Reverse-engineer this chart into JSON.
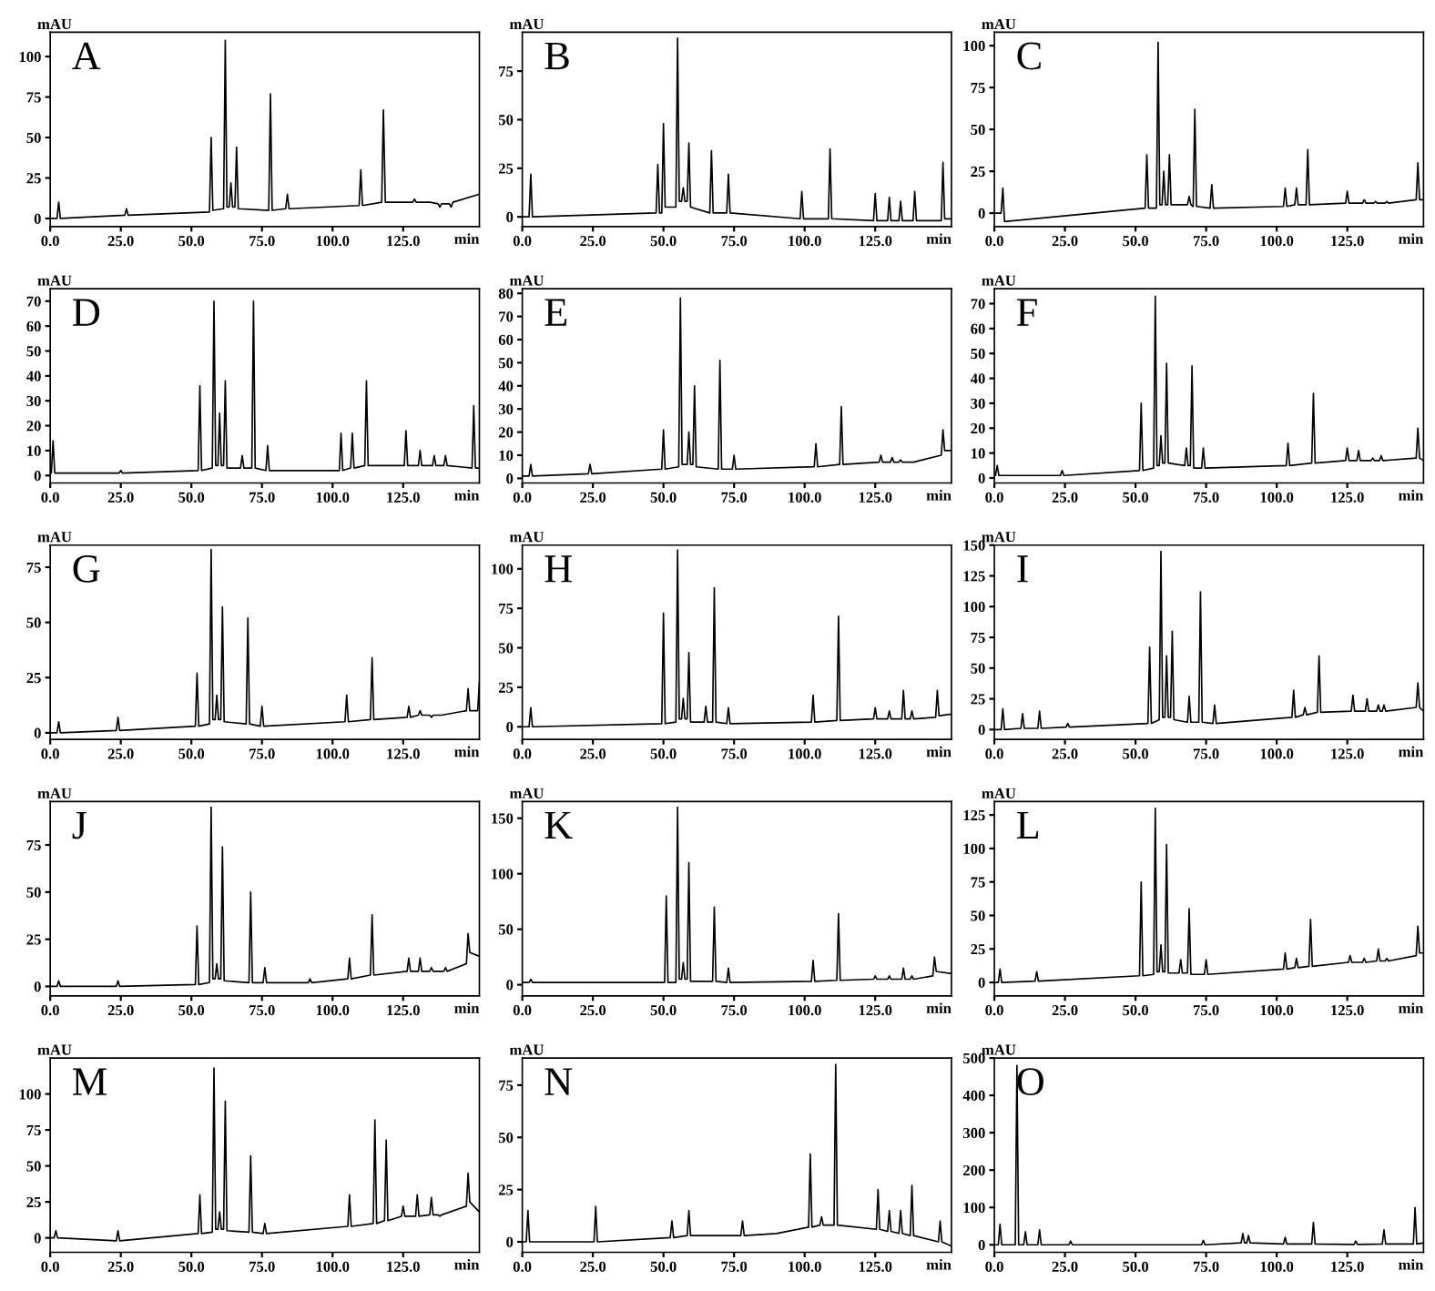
{
  "chart_data": [
    {
      "type": "line",
      "title": "A",
      "xlabel": "min",
      "ylabel": "mAU",
      "color": "#000000",
      "xlim": [
        0,
        152
      ],
      "ylim": [
        -5,
        115
      ],
      "yticks": [
        0,
        25,
        50,
        75,
        100
      ],
      "xticks": [
        {
          "value": 0,
          "label": "0.0"
        },
        {
          "value": 25,
          "label": "25.0"
        },
        {
          "value": 50,
          "label": "50.0"
        },
        {
          "value": 75,
          "label": "75.0"
        },
        {
          "value": 100,
          "label": "100.0"
        },
        {
          "value": 125,
          "label": "125.0"
        }
      ],
      "x": [
        0,
        2.4,
        3,
        3.6,
        26.4,
        27,
        27.6,
        56.4,
        57,
        57.6,
        61.4,
        62,
        62.6,
        63.4,
        64,
        64.6,
        65.4,
        66,
        66.6,
        77.4,
        78,
        78.6,
        83.4,
        84,
        84.6,
        109.4,
        110,
        110.6,
        117.4,
        118,
        118.7,
        128.4,
        129,
        129.6,
        133.4,
        134,
        134.6,
        137.4,
        138,
        138.6,
        141.4,
        142,
        142.6,
        152
      ],
      "values": [
        0,
        0,
        10,
        0,
        2,
        6,
        2,
        4,
        50,
        5,
        6,
        110,
        7,
        7,
        22,
        7,
        7,
        44,
        6,
        5,
        77,
        5,
        6,
        15,
        6,
        8,
        30,
        8,
        10,
        67,
        10,
        10,
        12,
        10,
        10,
        10,
        10,
        9,
        7,
        9,
        9,
        7,
        10,
        15
      ]
    },
    {
      "type": "line",
      "title": "B",
      "xlabel": "min",
      "ylabel": "mAU",
      "color": "#000000",
      "xlim": [
        0,
        152
      ],
      "ylim": [
        -5,
        95
      ],
      "yticks": [
        0,
        25,
        50,
        75
      ],
      "xticks": [
        {
          "value": 0,
          "label": "0.0"
        },
        {
          "value": 25,
          "label": "25.0"
        },
        {
          "value": 50,
          "label": "50.0"
        },
        {
          "value": 75,
          "label": "75.0"
        },
        {
          "value": 100,
          "label": "100.0"
        },
        {
          "value": 125,
          "label": "125.0"
        }
      ],
      "x": [
        0,
        2.4,
        3,
        3.6,
        47.4,
        48,
        48.6,
        49.4,
        50,
        50.6,
        54.4,
        55,
        55.6,
        56.4,
        57,
        57.6,
        58.4,
        59,
        59.6,
        66.4,
        67,
        67.6,
        72.4,
        73,
        73.6,
        98.4,
        99,
        99.6,
        108.4,
        109,
        109.6,
        124.4,
        125,
        125.6,
        129.4,
        130,
        130.6,
        133.4,
        134,
        134.6,
        138.4,
        139,
        139.6,
        148.4,
        149,
        149.6,
        152
      ],
      "values": [
        0,
        0,
        22,
        0,
        2,
        27,
        2,
        2,
        48,
        5,
        5,
        92,
        8,
        8,
        15,
        8,
        8,
        38,
        5,
        2,
        34,
        2,
        2,
        22,
        2,
        -1,
        13,
        -1,
        -1,
        35,
        -1,
        -2,
        12,
        -2,
        -2,
        10,
        -2,
        -2,
        8,
        -2,
        -2,
        13,
        -2,
        -2,
        28,
        -1,
        -1
      ]
    },
    {
      "type": "line",
      "title": "C",
      "xlabel": "min",
      "ylabel": "mAU",
      "color": "#000000",
      "xlim": [
        0,
        152
      ],
      "ylim": [
        -8,
        108
      ],
      "yticks": [
        0,
        25,
        50,
        75,
        100
      ],
      "xticks": [
        {
          "value": 0,
          "label": "0.0"
        },
        {
          "value": 25,
          "label": "25.0"
        },
        {
          "value": 50,
          "label": "50.0"
        },
        {
          "value": 75,
          "label": "75.0"
        },
        {
          "value": 100,
          "label": "100.0"
        },
        {
          "value": 125,
          "label": "125.0"
        }
      ],
      "x": [
        0,
        2.4,
        3,
        3.6,
        53.4,
        54,
        54.6,
        57.4,
        58,
        58.6,
        59.4,
        60,
        60.6,
        61.4,
        62,
        62.6,
        68.4,
        69,
        69.6,
        70.4,
        71,
        71.6,
        76.4,
        77,
        77.6,
        102.4,
        103,
        103.6,
        106.4,
        107,
        107.6,
        110.4,
        111,
        111.6,
        124.4,
        125,
        125.6,
        130.4,
        131,
        131.6,
        134.4,
        135,
        135.6,
        138.4,
        139,
        139.6,
        149.4,
        150,
        150.6,
        152
      ],
      "values": [
        0,
        0,
        15,
        -5,
        3,
        35,
        3,
        3,
        102,
        5,
        5,
        25,
        5,
        5,
        35,
        5,
        5,
        10,
        5,
        4,
        62,
        4,
        3,
        17,
        3,
        4,
        15,
        4,
        5,
        15,
        5,
        5,
        38,
        5,
        6,
        13,
        6,
        6,
        8,
        6,
        6,
        7,
        6,
        6,
        7,
        6,
        8,
        30,
        8,
        8
      ]
    },
    {
      "type": "line",
      "title": "D",
      "xlabel": "min",
      "ylabel": "mAU",
      "color": "#000000",
      "xlim": [
        0,
        152
      ],
      "ylim": [
        -3,
        75
      ],
      "yticks": [
        0,
        10,
        20,
        30,
        40,
        50,
        60,
        70
      ],
      "xticks": [
        {
          "value": 0,
          "label": "0.0"
        },
        {
          "value": 25,
          "label": "25.0"
        },
        {
          "value": 50,
          "label": "50.0"
        },
        {
          "value": 75,
          "label": "75.0"
        },
        {
          "value": 100,
          "label": "100.0"
        },
        {
          "value": 125,
          "label": "125.0"
        }
      ],
      "x": [
        0,
        0.4,
        1,
        1.6,
        24.4,
        25,
        25.6,
        52.4,
        53,
        53.6,
        57.4,
        58,
        58.6,
        59.4,
        60,
        60.6,
        61.4,
        62,
        62.6,
        67.4,
        68,
        68.6,
        71.4,
        72,
        72.6,
        76.4,
        77,
        77.6,
        102.4,
        103,
        103.6,
        106.4,
        107,
        107.6,
        111.4,
        112,
        112.6,
        125.4,
        126,
        126.6,
        130.4,
        131,
        131.6,
        135.4,
        136,
        136.6,
        139.4,
        140,
        140.6,
        149.4,
        150,
        150.6,
        152
      ],
      "values": [
        1,
        1,
        14,
        1,
        1,
        2,
        1,
        2,
        36,
        2,
        3,
        70,
        4,
        4,
        25,
        4,
        4,
        38,
        3,
        3,
        8,
        3,
        3,
        70,
        3,
        2,
        12,
        2,
        2,
        17,
        2,
        3,
        17,
        3,
        4,
        38,
        4,
        4,
        18,
        4,
        4,
        10,
        4,
        4,
        8,
        4,
        4,
        8,
        4,
        3,
        28,
        3,
        3
      ]
    },
    {
      "type": "line",
      "title": "E",
      "xlabel": "min",
      "ylabel": "mAU",
      "color": "#000000",
      "xlim": [
        0,
        152
      ],
      "ylim": [
        -2,
        82
      ],
      "yticks": [
        0,
        10,
        20,
        30,
        40,
        50,
        60,
        70,
        80
      ],
      "xticks": [
        {
          "value": 0,
          "label": "0.0"
        },
        {
          "value": 25,
          "label": "25.0"
        },
        {
          "value": 50,
          "label": "50.0"
        },
        {
          "value": 75,
          "label": "75.0"
        },
        {
          "value": 100,
          "label": "100.0"
        },
        {
          "value": 125,
          "label": "125.0"
        }
      ],
      "x": [
        0,
        2.4,
        3,
        3.6,
        23.4,
        24,
        24.6,
        49.4,
        50,
        50.6,
        55.4,
        56,
        56.6,
        58.4,
        59,
        59.6,
        60.4,
        61,
        61.6,
        69.4,
        70,
        70.6,
        74.4,
        75,
        75.6,
        103.4,
        104,
        104.6,
        112.4,
        113,
        113.6,
        126.4,
        127,
        127.6,
        130.4,
        131,
        131.6,
        133.4,
        134,
        134.6,
        137.4,
        138,
        138.6,
        148.4,
        149,
        149.6,
        152
      ],
      "values": [
        1,
        1,
        6,
        1,
        2,
        6,
        2,
        4,
        21,
        4,
        5,
        78,
        6,
        6,
        20,
        6,
        6,
        40,
        5,
        4,
        51,
        4,
        4,
        10,
        4,
        5,
        15,
        5,
        6,
        31,
        6,
        7,
        10,
        7,
        7,
        9,
        7,
        7,
        8,
        7,
        7,
        7,
        7,
        10,
        21,
        12,
        12
      ]
    },
    {
      "type": "line",
      "title": "F",
      "xlabel": "min",
      "ylabel": "mAU",
      "color": "#000000",
      "xlim": [
        0,
        152
      ],
      "ylim": [
        -2,
        76
      ],
      "yticks": [
        0,
        10,
        20,
        30,
        40,
        50,
        60,
        70
      ],
      "xticks": [
        {
          "value": 0,
          "label": "0.0"
        },
        {
          "value": 25,
          "label": "25.0"
        },
        {
          "value": 50,
          "label": "50.0"
        },
        {
          "value": 75,
          "label": "75.0"
        },
        {
          "value": 100,
          "label": "100.0"
        },
        {
          "value": 125,
          "label": "125.0"
        }
      ],
      "x": [
        0,
        0.4,
        1,
        1.6,
        23.4,
        24,
        24.6,
        51.4,
        52,
        52.6,
        56.4,
        57,
        57.6,
        58.4,
        59,
        59.6,
        60.4,
        61,
        61.6,
        67.4,
        68,
        68.6,
        69.4,
        70,
        70.6,
        73.4,
        74,
        74.6,
        103.4,
        104,
        104.6,
        112.4,
        113,
        113.6,
        124.4,
        125,
        125.6,
        128.4,
        129,
        129.6,
        133.4,
        134,
        134.6,
        136.4,
        137,
        137.6,
        149.4,
        150,
        150.6,
        152
      ],
      "values": [
        1,
        1,
        5,
        1,
        1,
        3,
        1,
        3,
        30,
        3,
        4,
        73,
        5,
        5,
        17,
        6,
        6,
        46,
        6,
        5,
        12,
        5,
        5,
        45,
        4,
        4,
        12,
        4,
        5,
        14,
        5,
        6,
        34,
        6,
        7,
        12,
        7,
        7,
        11,
        7,
        7,
        8,
        7,
        7,
        9,
        7,
        8,
        20,
        8,
        7
      ]
    },
    {
      "type": "line",
      "title": "G",
      "xlabel": "min",
      "ylabel": "mAU",
      "color": "#000000",
      "xlim": [
        0,
        152
      ],
      "ylim": [
        -3,
        85
      ],
      "yticks": [
        0,
        25,
        50,
        75
      ],
      "xticks": [
        {
          "value": 0,
          "label": "0.0"
        },
        {
          "value": 25,
          "label": "25.0"
        },
        {
          "value": 50,
          "label": "50.0"
        },
        {
          "value": 75,
          "label": "75.0"
        },
        {
          "value": 100,
          "label": "100.0"
        },
        {
          "value": 125,
          "label": "125.0"
        }
      ],
      "x": [
        0,
        2.4,
        3,
        3.6,
        23.4,
        24,
        24.6,
        51.4,
        52,
        52.6,
        56.4,
        57,
        57.6,
        58.4,
        59,
        59.6,
        60.4,
        61,
        61.6,
        69.4,
        70,
        70.6,
        74.4,
        75,
        75.6,
        104.4,
        105,
        105.6,
        113.4,
        114,
        114.6,
        126.4,
        127,
        127.6,
        130.4,
        131,
        131.6,
        134.4,
        135,
        135.6,
        137.4,
        138,
        138.6,
        147.4,
        148,
        148.6,
        151.4,
        152
      ],
      "values": [
        0,
        0,
        5,
        0,
        1,
        7,
        1,
        3,
        27,
        3,
        4,
        83,
        6,
        6,
        17,
        6,
        6,
        57,
        5,
        4,
        52,
        4,
        3,
        12,
        3,
        5,
        17,
        5,
        6,
        34,
        6,
        7,
        12,
        7,
        8,
        10,
        8,
        8,
        7,
        8,
        8,
        8,
        8,
        10,
        20,
        10,
        10,
        23
      ]
    },
    {
      "type": "line",
      "title": "H",
      "xlabel": "min",
      "ylabel": "mAU",
      "color": "#000000",
      "xlim": [
        0,
        152
      ],
      "ylim": [
        -8,
        115
      ],
      "yticks": [
        0,
        25,
        50,
        75,
        100
      ],
      "xticks": [
        {
          "value": 0,
          "label": "0.0"
        },
        {
          "value": 25,
          "label": "25.0"
        },
        {
          "value": 50,
          "label": "50.0"
        },
        {
          "value": 75,
          "label": "75.0"
        },
        {
          "value": 100,
          "label": "100.0"
        },
        {
          "value": 125,
          "label": "125.0"
        }
      ],
      "x": [
        0,
        2.4,
        3,
        3.6,
        49.4,
        50,
        50.6,
        54.4,
        55,
        55.6,
        56.4,
        57,
        57.6,
        58.4,
        59,
        59.6,
        64.4,
        65,
        65.6,
        67.4,
        68,
        68.6,
        72.4,
        73,
        73.6,
        102.4,
        103,
        103.6,
        111.4,
        112,
        112.6,
        124.4,
        125,
        125.6,
        129.4,
        130,
        130.6,
        134.4,
        135,
        135.6,
        137.4,
        138,
        138.6,
        146.4,
        147,
        147.6,
        152
      ],
      "values": [
        0,
        0,
        12,
        0,
        2,
        72,
        2,
        3,
        112,
        5,
        5,
        18,
        5,
        5,
        47,
        3,
        3,
        13,
        3,
        3,
        88,
        3,
        2,
        12,
        2,
        3,
        20,
        3,
        4,
        70,
        4,
        5,
        12,
        5,
        5,
        10,
        5,
        5,
        23,
        5,
        5,
        10,
        5,
        6,
        23,
        7,
        8
      ]
    },
    {
      "type": "line",
      "title": "I",
      "xlabel": "min",
      "ylabel": "mAU",
      "color": "#000000",
      "xlim": [
        0,
        152
      ],
      "ylim": [
        -8,
        150
      ],
      "yticks": [
        0,
        25,
        50,
        75,
        100,
        125,
        150
      ],
      "xticks": [
        {
          "value": 0,
          "label": "0.0"
        },
        {
          "value": 25,
          "label": "25.0"
        },
        {
          "value": 50,
          "label": "50.0"
        },
        {
          "value": 75,
          "label": "75.0"
        },
        {
          "value": 100,
          "label": "100.0"
        },
        {
          "value": 125,
          "label": "125.0"
        }
      ],
      "x": [
        0,
        2.4,
        3,
        3.6,
        9.4,
        10,
        10.6,
        15.4,
        16,
        16.6,
        25.4,
        26,
        26.6,
        54.4,
        55,
        55.6,
        58.4,
        59,
        59.6,
        60.4,
        61,
        61.6,
        62.4,
        63,
        63.6,
        68.4,
        69,
        69.6,
        72.4,
        73,
        73.6,
        77.4,
        78,
        78.6,
        105.4,
        106,
        106.6,
        109.4,
        110,
        110.6,
        114.4,
        115,
        115.6,
        126.4,
        127,
        127.6,
        131.4,
        132,
        132.6,
        135.4,
        136,
        136.6,
        137.4,
        138,
        138.6,
        149.4,
        150,
        150.6,
        152
      ],
      "values": [
        0,
        0,
        17,
        0,
        1,
        13,
        1,
        1,
        15,
        1,
        2,
        5,
        2,
        5,
        67,
        5,
        8,
        145,
        10,
        10,
        60,
        10,
        10,
        80,
        8,
        6,
        27,
        6,
        6,
        112,
        6,
        5,
        20,
        5,
        10,
        32,
        10,
        12,
        18,
        12,
        14,
        60,
        14,
        15,
        28,
        15,
        15,
        25,
        15,
        15,
        20,
        15,
        15,
        20,
        15,
        18,
        38,
        18,
        15
      ]
    },
    {
      "type": "line",
      "title": "J",
      "xlabel": "min",
      "ylabel": "mAU",
      "color": "#000000",
      "xlim": [
        0,
        152
      ],
      "ylim": [
        -5,
        98
      ],
      "yticks": [
        0,
        25,
        50,
        75
      ],
      "xticks": [
        {
          "value": 0,
          "label": "0.0"
        },
        {
          "value": 25,
          "label": "25.0"
        },
        {
          "value": 50,
          "label": "50.0"
        },
        {
          "value": 75,
          "label": "75.0"
        },
        {
          "value": 100,
          "label": "100.0"
        },
        {
          "value": 125,
          "label": "125.0"
        }
      ],
      "x": [
        0,
        2.4,
        3,
        3.6,
        23.4,
        24,
        24.6,
        51.4,
        52,
        52.6,
        56.4,
        57,
        57.6,
        58.4,
        59,
        59.6,
        60.4,
        61,
        61.6,
        70.4,
        71,
        71.6,
        75.4,
        76,
        76.6,
        91.4,
        92,
        92.6,
        105.4,
        106,
        106.6,
        113.4,
        114,
        114.6,
        126.4,
        127,
        127.6,
        130.4,
        131,
        131.6,
        134.4,
        135,
        135.6,
        139.4,
        140,
        140.6,
        147.4,
        148,
        148.6,
        152
      ],
      "values": [
        0,
        0,
        3,
        0,
        0,
        3,
        0,
        1,
        32,
        1,
        2,
        95,
        4,
        4,
        12,
        4,
        4,
        74,
        3,
        2,
        50,
        2,
        2,
        10,
        2,
        2,
        4,
        2,
        4,
        15,
        4,
        6,
        38,
        6,
        8,
        15,
        8,
        8,
        15,
        8,
        8,
        10,
        8,
        8,
        10,
        8,
        12,
        28,
        18,
        16
      ]
    },
    {
      "type": "line",
      "title": "K",
      "xlabel": "min",
      "ylabel": "mAU",
      "color": "#000000",
      "xlim": [
        0,
        152
      ],
      "ylim": [
        -10,
        165
      ],
      "yticks": [
        0,
        50,
        100,
        150
      ],
      "xticks": [
        {
          "value": 0,
          "label": "0.0"
        },
        {
          "value": 25,
          "label": "25.0"
        },
        {
          "value": 50,
          "label": "50.0"
        },
        {
          "value": 75,
          "label": "75.0"
        },
        {
          "value": 100,
          "label": "100.0"
        },
        {
          "value": 125,
          "label": "125.0"
        }
      ],
      "x": [
        0,
        2.4,
        3,
        3.6,
        50.4,
        51,
        51.6,
        54.4,
        55,
        55.6,
        56.4,
        57,
        57.6,
        58.4,
        59,
        59.6,
        67.4,
        68,
        68.6,
        72.4,
        73,
        73.6,
        102.4,
        103,
        103.6,
        111.4,
        112,
        112.6,
        124.4,
        125,
        125.6,
        129.4,
        130,
        130.6,
        134.4,
        135,
        135.6,
        137.4,
        138,
        138.6,
        145.4,
        146,
        146.6,
        152
      ],
      "values": [
        2,
        2,
        5,
        2,
        2,
        80,
        2,
        2,
        160,
        5,
        5,
        20,
        5,
        5,
        110,
        3,
        3,
        70,
        3,
        2,
        15,
        2,
        3,
        22,
        3,
        4,
        64,
        4,
        5,
        8,
        5,
        5,
        8,
        5,
        5,
        15,
        5,
        5,
        8,
        5,
        8,
        25,
        12,
        10
      ]
    },
    {
      "type": "line",
      "title": "L",
      "xlabel": "min",
      "ylabel": "mAU",
      "color": "#000000",
      "xlim": [
        0,
        152
      ],
      "ylim": [
        -10,
        135
      ],
      "yticks": [
        0,
        25,
        50,
        75,
        100,
        125
      ],
      "xticks": [
        {
          "value": 0,
          "label": "0.0"
        },
        {
          "value": 25,
          "label": "25.0"
        },
        {
          "value": 50,
          "label": "50.0"
        },
        {
          "value": 75,
          "label": "75.0"
        },
        {
          "value": 100,
          "label": "100.0"
        },
        {
          "value": 125,
          "label": "125.0"
        }
      ],
      "x": [
        0,
        1.4,
        2,
        2.6,
        14.4,
        15,
        15.6,
        51.4,
        52,
        52.6,
        56.4,
        57,
        57.6,
        58.4,
        59,
        59.6,
        60.4,
        61,
        61.6,
        65.4,
        66,
        66.6,
        68.4,
        69,
        69.6,
        74.4,
        75,
        75.6,
        102.4,
        103,
        103.6,
        106.4,
        107,
        107.6,
        111.4,
        112,
        112.6,
        125.4,
        126,
        126.6,
        130.4,
        131,
        131.6,
        135.4,
        136,
        136.6,
        138.4,
        139,
        139.6,
        149.4,
        150,
        150.6,
        152
      ],
      "values": [
        0,
        0,
        10,
        0,
        1,
        8,
        1,
        5,
        75,
        5,
        6,
        130,
        8,
        8,
        28,
        8,
        8,
        103,
        7,
        7,
        17,
        7,
        7,
        55,
        6,
        6,
        17,
        6,
        10,
        22,
        10,
        11,
        18,
        11,
        12,
        47,
        12,
        15,
        20,
        15,
        15,
        18,
        15,
        16,
        25,
        16,
        16,
        18,
        16,
        20,
        42,
        22,
        22
      ]
    },
    {
      "type": "line",
      "title": "M",
      "xlabel": "min",
      "ylabel": "mAU",
      "color": "#000000",
      "xlim": [
        0,
        152
      ],
      "ylim": [
        -10,
        125
      ],
      "yticks": [
        0,
        25,
        50,
        75,
        100
      ],
      "xticks": [
        {
          "value": 0,
          "label": "0.0"
        },
        {
          "value": 25,
          "label": "25.0"
        },
        {
          "value": 50,
          "label": "50.0"
        },
        {
          "value": 75,
          "label": "75.0"
        },
        {
          "value": 100,
          "label": "100.0"
        },
        {
          "value": 125,
          "label": "125.0"
        }
      ],
      "x": [
        0,
        1.4,
        2,
        2.6,
        23.4,
        24,
        24.6,
        52.4,
        53,
        53.6,
        57.4,
        58,
        58.6,
        59.4,
        60,
        60.6,
        61.4,
        62,
        62.6,
        70.4,
        71,
        71.6,
        75.4,
        76,
        76.6,
        105.4,
        106,
        106.6,
        114.4,
        115,
        115.6,
        118.4,
        119,
        119.6,
        124.4,
        125,
        125.6,
        129.4,
        130,
        130.6,
        134.4,
        135,
        135.6,
        137.4,
        138,
        138.6,
        147.4,
        148,
        148.6,
        152
      ],
      "values": [
        0,
        0,
        5,
        0,
        -2,
        5,
        -2,
        3,
        30,
        3,
        4,
        118,
        6,
        6,
        18,
        6,
        6,
        95,
        5,
        4,
        57,
        4,
        3,
        10,
        3,
        8,
        30,
        8,
        10,
        82,
        10,
        12,
        68,
        12,
        15,
        22,
        15,
        15,
        30,
        15,
        16,
        28,
        16,
        16,
        15,
        16,
        22,
        45,
        25,
        18
      ]
    },
    {
      "type": "line",
      "title": "N",
      "xlabel": "min",
      "ylabel": "mAU",
      "color": "#000000",
      "xlim": [
        0,
        152
      ],
      "ylim": [
        -5,
        88
      ],
      "yticks": [
        0,
        25,
        50,
        75
      ],
      "xticks": [
        {
          "value": 0,
          "label": "0.0"
        },
        {
          "value": 25,
          "label": "25.0"
        },
        {
          "value": 50,
          "label": "50.0"
        },
        {
          "value": 75,
          "label": "75.0"
        },
        {
          "value": 100,
          "label": "100.0"
        },
        {
          "value": 125,
          "label": "125.0"
        }
      ],
      "x": [
        0,
        1.4,
        2,
        2.6,
        25.4,
        26,
        26.6,
        52.4,
        53,
        53.6,
        58.4,
        59,
        59.6,
        77.4,
        78,
        78.6,
        90,
        101.4,
        102,
        102.6,
        105.4,
        106,
        106.6,
        110.4,
        111,
        111.6,
        125.4,
        126,
        126.6,
        129.4,
        130,
        130.6,
        133.4,
        134,
        134.6,
        137.4,
        138,
        138.6,
        147.4,
        148,
        148.6,
        152
      ],
      "values": [
        0,
        0,
        15,
        0,
        0,
        17,
        0,
        2,
        10,
        2,
        3,
        15,
        3,
        3,
        10,
        3,
        4,
        7,
        42,
        7,
        8,
        12,
        8,
        8,
        85,
        8,
        6,
        25,
        6,
        5,
        15,
        5,
        4,
        15,
        4,
        3,
        27,
        3,
        0,
        10,
        0,
        -2
      ]
    },
    {
      "type": "line",
      "title": "O",
      "xlabel": "min",
      "ylabel": "mAU",
      "color": "#000000",
      "xlim": [
        0,
        152
      ],
      "ylim": [
        -20,
        500
      ],
      "yticks": [
        0,
        100,
        200,
        300,
        400,
        500
      ],
      "xticks": [
        {
          "value": 0,
          "label": "0.0"
        },
        {
          "value": 25,
          "label": "25.0"
        },
        {
          "value": 50,
          "label": "50.0"
        },
        {
          "value": 75,
          "label": "75.0"
        },
        {
          "value": 100,
          "label": "100.0"
        },
        {
          "value": 125,
          "label": "125.0"
        }
      ],
      "x": [
        0,
        1.4,
        2,
        2.6,
        7.4,
        8,
        8.6,
        10.4,
        11,
        11.6,
        15.4,
        16,
        16.6,
        26.4,
        27,
        27.6,
        73.4,
        74,
        74.6,
        87.4,
        88,
        88.6,
        89.4,
        90,
        90.6,
        102.4,
        103,
        103.6,
        112.4,
        113,
        113.6,
        127.4,
        128,
        128.6,
        137.4,
        138,
        138.6,
        148.4,
        149,
        149.6,
        152
      ],
      "values": [
        0,
        0,
        55,
        0,
        0,
        480,
        0,
        0,
        35,
        0,
        0,
        40,
        0,
        0,
        10,
        0,
        0,
        12,
        0,
        5,
        30,
        5,
        5,
        25,
        5,
        2,
        20,
        2,
        2,
        60,
        2,
        1,
        10,
        1,
        2,
        40,
        2,
        2,
        100,
        2,
        5
      ]
    }
  ]
}
